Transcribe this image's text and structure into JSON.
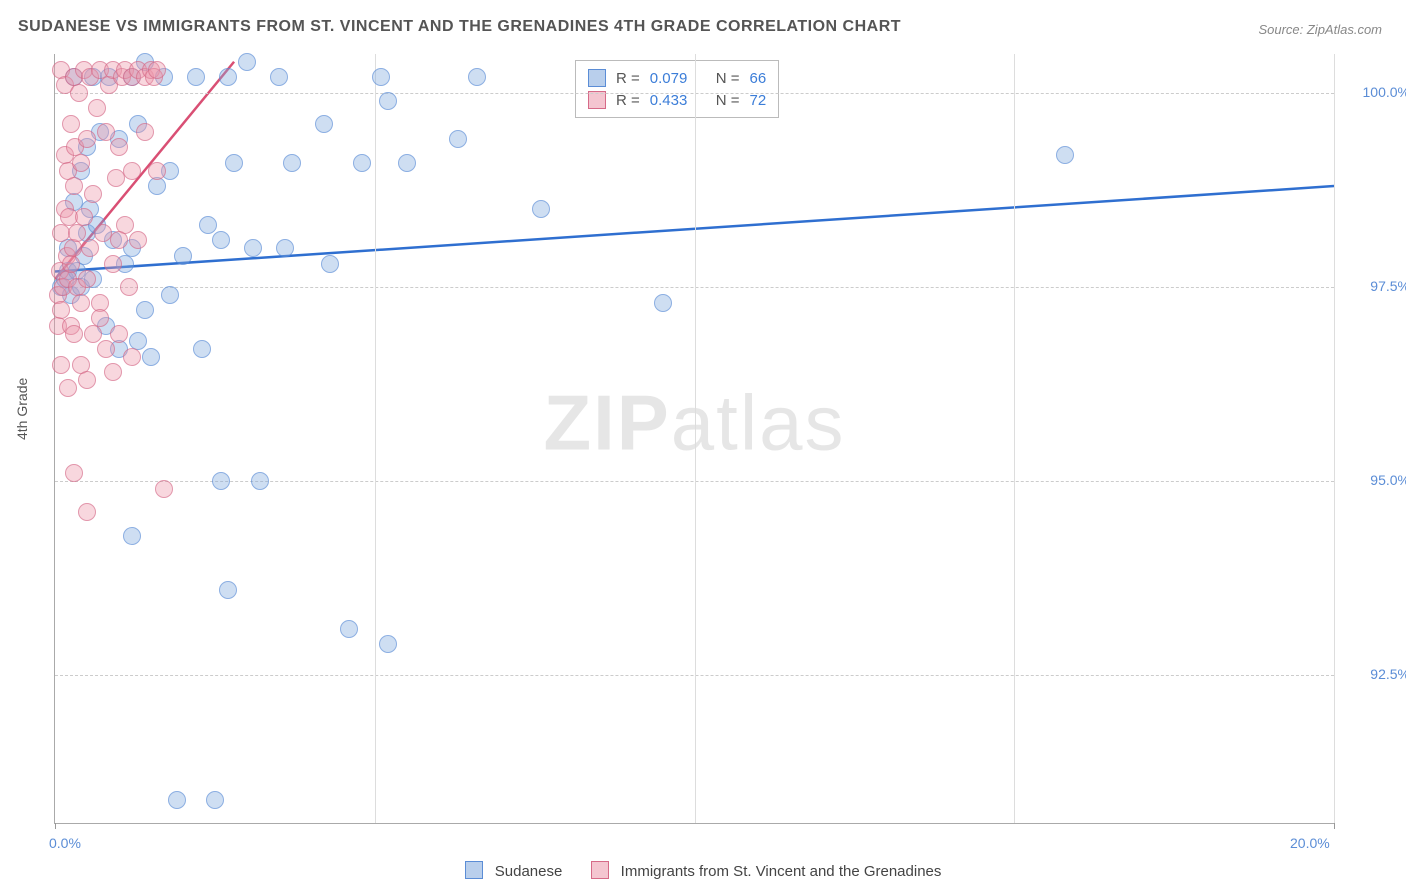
{
  "title": "SUDANESE VS IMMIGRANTS FROM ST. VINCENT AND THE GRENADINES 4TH GRADE CORRELATION CHART",
  "source": "Source: ZipAtlas.com",
  "watermark_a": "ZIP",
  "watermark_b": "atlas",
  "y_axis_label": "4th Grade",
  "chart": {
    "type": "scatter",
    "x_min": 0.0,
    "x_max": 20.0,
    "y_min": 90.6,
    "y_max": 100.5,
    "x_ticks": [
      0.0,
      20.0
    ],
    "x_tick_labels": [
      "0.0%",
      "20.0%"
    ],
    "x_gridlines_at": [
      5.0,
      10.0,
      15.0,
      20.0
    ],
    "y_ticks": [
      92.5,
      95.0,
      97.5,
      100.0
    ],
    "y_tick_labels": [
      "92.5%",
      "95.0%",
      "97.5%",
      "100.0%"
    ],
    "background_color": "#ffffff",
    "grid_color": "#cccccc",
    "axis_color": "#aaaaaa",
    "marker_radius": 9,
    "marker_opacity": 0.7,
    "series": [
      {
        "key": "sudanese",
        "label": "Sudanese",
        "color_fill": "rgba(127,168,220,0.55)",
        "color_border": "#5b8dd6",
        "line_color": "#2f6fd0",
        "line_width": 2.5,
        "r": "0.079",
        "n": "66",
        "trend": {
          "x1": 0.0,
          "y1": 97.7,
          "x2": 20.0,
          "y2": 98.8
        },
        "points": [
          [
            0.1,
            97.5
          ],
          [
            0.15,
            97.6
          ],
          [
            0.2,
            97.7
          ],
          [
            0.2,
            98.0
          ],
          [
            0.25,
            97.4
          ],
          [
            0.3,
            98.6
          ],
          [
            0.3,
            100.2
          ],
          [
            0.35,
            97.7
          ],
          [
            0.4,
            97.5
          ],
          [
            0.4,
            99.0
          ],
          [
            0.45,
            97.9
          ],
          [
            0.5,
            98.2
          ],
          [
            0.5,
            99.3
          ],
          [
            0.55,
            98.5
          ],
          [
            0.6,
            97.6
          ],
          [
            0.6,
            100.2
          ],
          [
            0.65,
            98.3
          ],
          [
            0.7,
            99.5
          ],
          [
            0.8,
            97.0
          ],
          [
            0.85,
            100.2
          ],
          [
            0.9,
            98.1
          ],
          [
            1.0,
            96.7
          ],
          [
            1.0,
            99.4
          ],
          [
            1.1,
            97.8
          ],
          [
            1.2,
            98.0
          ],
          [
            1.2,
            100.2
          ],
          [
            1.3,
            96.8
          ],
          [
            1.3,
            99.6
          ],
          [
            1.4,
            97.2
          ],
          [
            1.4,
            100.4
          ],
          [
            1.5,
            96.6
          ],
          [
            1.6,
            98.8
          ],
          [
            1.7,
            100.2
          ],
          [
            1.8,
            97.4
          ],
          [
            1.8,
            99.0
          ],
          [
            2.0,
            97.9
          ],
          [
            2.2,
            100.2
          ],
          [
            2.3,
            96.7
          ],
          [
            2.4,
            98.3
          ],
          [
            2.6,
            95.0
          ],
          [
            2.6,
            98.1
          ],
          [
            2.7,
            100.2
          ],
          [
            2.8,
            99.1
          ],
          [
            3.0,
            100.4
          ],
          [
            3.1,
            98.0
          ],
          [
            3.2,
            95.0
          ],
          [
            3.5,
            100.2
          ],
          [
            3.6,
            98.0
          ],
          [
            3.7,
            99.1
          ],
          [
            4.2,
            99.6
          ],
          [
            4.3,
            97.8
          ],
          [
            4.6,
            93.1
          ],
          [
            4.8,
            99.1
          ],
          [
            5.1,
            100.2
          ],
          [
            5.2,
            92.9
          ],
          [
            5.5,
            99.1
          ],
          [
            6.3,
            99.4
          ],
          [
            6.6,
            100.2
          ],
          [
            7.6,
            98.5
          ],
          [
            9.5,
            97.3
          ],
          [
            1.2,
            94.3
          ],
          [
            1.9,
            90.9
          ],
          [
            2.5,
            90.9
          ],
          [
            2.7,
            93.6
          ],
          [
            15.8,
            99.2
          ],
          [
            5.2,
            99.9
          ]
        ]
      },
      {
        "key": "svg_immigrants",
        "label": "Immigrants from St. Vincent and the Grenadines",
        "color_fill": "rgba(235,150,170,0.55)",
        "color_border": "#d66a88",
        "line_color": "#d94f74",
        "line_width": 2.5,
        "r": "0.433",
        "n": "72",
        "trend": {
          "x1": 0.0,
          "y1": 97.6,
          "x2": 2.8,
          "y2": 100.4
        },
        "points": [
          [
            0.05,
            97.0
          ],
          [
            0.05,
            97.4
          ],
          [
            0.08,
            97.7
          ],
          [
            0.1,
            96.5
          ],
          [
            0.1,
            97.2
          ],
          [
            0.1,
            98.2
          ],
          [
            0.1,
            100.3
          ],
          [
            0.12,
            97.5
          ],
          [
            0.15,
            98.5
          ],
          [
            0.15,
            99.2
          ],
          [
            0.15,
            100.1
          ],
          [
            0.18,
            97.9
          ],
          [
            0.2,
            96.2
          ],
          [
            0.2,
            97.6
          ],
          [
            0.2,
            99.0
          ],
          [
            0.22,
            98.4
          ],
          [
            0.25,
            97.0
          ],
          [
            0.25,
            97.8
          ],
          [
            0.25,
            99.6
          ],
          [
            0.28,
            98.0
          ],
          [
            0.3,
            96.9
          ],
          [
            0.3,
            98.8
          ],
          [
            0.3,
            100.2
          ],
          [
            0.32,
            99.3
          ],
          [
            0.35,
            97.5
          ],
          [
            0.35,
            98.2
          ],
          [
            0.38,
            100.0
          ],
          [
            0.4,
            96.5
          ],
          [
            0.4,
            97.3
          ],
          [
            0.4,
            99.1
          ],
          [
            0.45,
            98.4
          ],
          [
            0.45,
            100.3
          ],
          [
            0.5,
            96.3
          ],
          [
            0.5,
            97.6
          ],
          [
            0.5,
            99.4
          ],
          [
            0.55,
            98.0
          ],
          [
            0.55,
            100.2
          ],
          [
            0.6,
            96.9
          ],
          [
            0.6,
            98.7
          ],
          [
            0.65,
            99.8
          ],
          [
            0.7,
            97.3
          ],
          [
            0.7,
            100.3
          ],
          [
            0.75,
            98.2
          ],
          [
            0.8,
            96.7
          ],
          [
            0.8,
            99.5
          ],
          [
            0.85,
            100.1
          ],
          [
            0.9,
            97.8
          ],
          [
            0.9,
            100.3
          ],
          [
            0.95,
            98.9
          ],
          [
            1.0,
            96.9
          ],
          [
            1.0,
            99.3
          ],
          [
            1.05,
            100.2
          ],
          [
            1.1,
            98.3
          ],
          [
            1.1,
            100.3
          ],
          [
            1.15,
            97.5
          ],
          [
            1.2,
            99.0
          ],
          [
            1.2,
            100.2
          ],
          [
            1.3,
            98.1
          ],
          [
            1.3,
            100.3
          ],
          [
            1.4,
            99.5
          ],
          [
            1.4,
            100.2
          ],
          [
            1.5,
            100.3
          ],
          [
            1.55,
            100.2
          ],
          [
            1.6,
            99.0
          ],
          [
            1.6,
            100.3
          ],
          [
            1.2,
            96.6
          ],
          [
            0.3,
            95.1
          ],
          [
            0.5,
            94.6
          ],
          [
            0.7,
            97.1
          ],
          [
            0.9,
            96.4
          ],
          [
            1.0,
            98.1
          ],
          [
            1.7,
            94.9
          ]
        ]
      }
    ]
  },
  "legend_top": {
    "r_label": "R =",
    "n_label": "N ="
  },
  "legend_bottom": {
    "items": [
      {
        "swatch": "blue",
        "label": "Sudanese"
      },
      {
        "swatch": "pink",
        "label": "Immigrants from St. Vincent and the Grenadines"
      }
    ]
  }
}
